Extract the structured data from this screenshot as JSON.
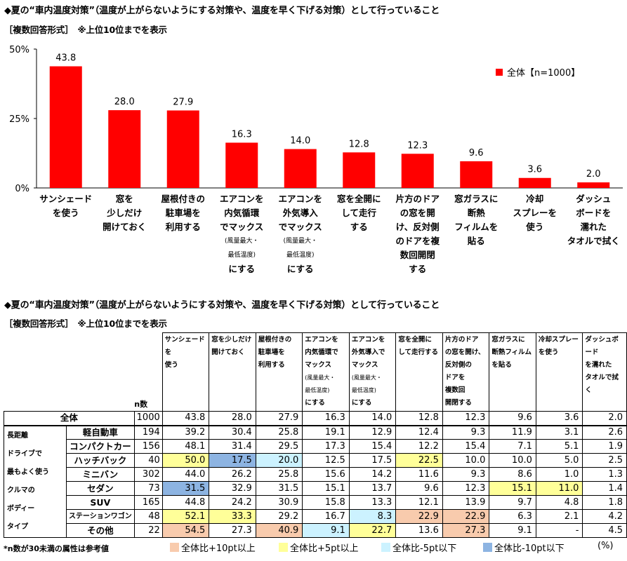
{
  "heading1": "◆夏の“車内温度対策”（温度が上がらないようにする対策や、温度を早く下げる対策）として行っていること",
  "subheading1": "［複数回答形式］　※上位10位までを表示",
  "heading2": "◆夏の“車内温度対策”（温度が上がらないようにする対策や、温度を早く下げる対策）として行っていること",
  "subheading2": "［複数回答形式］　※上位10位までを表示",
  "colors": {
    "bar": "#ff0000",
    "plus10": "#f8cbad",
    "plus5": "#ffff99",
    "minus5": "#ccf2ff",
    "minus10": "#8db4e2"
  },
  "chart_data": {
    "type": "bar",
    "categories": [
      [
        "サンシェード",
        "を使う"
      ],
      [
        "窓を",
        "少しだけ",
        "開けておく"
      ],
      [
        "屋根付きの",
        "駐車場を",
        "利用する"
      ],
      [
        "エアコンを",
        "内気循環",
        "でマックス",
        "(風量最大・",
        "最低温度)",
        "にする"
      ],
      [
        "エアコンを",
        "外気導入",
        "でマックス",
        "(風量最大・",
        "最低温度)",
        "にする"
      ],
      [
        "窓を全開に",
        "して走行",
        "する"
      ],
      [
        "片方のドア",
        "の窓を開",
        "け、反対側",
        "のドアを複",
        "数回開閉",
        "する"
      ],
      [
        "窓ガラスに",
        "断熱",
        "フィルムを",
        "貼る"
      ],
      [
        "冷却",
        "スプレーを",
        "使う"
      ],
      [
        "ダッシュ",
        "ボードを",
        "濡れた",
        "タオルで拭く"
      ]
    ],
    "series": [
      {
        "name": "全体【n=1000】",
        "values": [
          43.8,
          28.0,
          27.9,
          16.3,
          14.0,
          12.8,
          12.3,
          9.6,
          3.6,
          2.0
        ]
      }
    ],
    "yticks": [
      "0%",
      "25%",
      "50%"
    ],
    "ylim": [
      0,
      50
    ],
    "legend": "top-right"
  },
  "table": {
    "headers": [
      [
        "サンシェードを",
        "使う"
      ],
      [
        "窓を少しだけ",
        "開けておく"
      ],
      [
        "屋根付きの",
        "駐車場を",
        "利用する"
      ],
      [
        "エアコンを",
        "内気循環で",
        "マックス",
        "(風量最大・",
        "最低温度)",
        "にする"
      ],
      [
        "エアコンを",
        "外気導入で",
        "マックス",
        "(風量最大・",
        "最低温度)",
        "にする"
      ],
      [
        "窓を全開に",
        "して走行する"
      ],
      [
        "片方のドア",
        "の窓を開け、",
        "反対側の",
        "ドアを",
        "複数回",
        "開閉する"
      ],
      [
        "窓ガラスに",
        "断熱フィルム",
        "を貼る"
      ],
      [
        "冷却スプレー",
        "を使う"
      ],
      [
        "ダッシュボード",
        "を濡れた",
        "タオルで拭く"
      ]
    ],
    "n_label": "n数",
    "group_label": [
      "長距離",
      "ドライブで",
      "最もよく使う",
      "クルマの",
      "ボディー",
      "タイプ"
    ],
    "total": {
      "label": "全体",
      "n": "1000",
      "values": [
        "43.8",
        "28.0",
        "27.9",
        "16.3",
        "14.0",
        "12.8",
        "12.3",
        "9.6",
        "3.6",
        "2.0"
      ]
    },
    "rows": [
      {
        "label": "軽自動車",
        "n": "194",
        "values": [
          "39.2",
          "30.4",
          "25.8",
          "19.1",
          "12.9",
          "12.4",
          "9.3",
          "11.9",
          "3.1",
          "2.6"
        ],
        "marks": [
          "",
          "",
          "",
          "",
          "",
          "",
          "",
          "",
          "",
          ""
        ]
      },
      {
        "label": "コンパクトカー",
        "n": "156",
        "values": [
          "48.1",
          "31.4",
          "29.5",
          "17.3",
          "15.4",
          "12.2",
          "15.4",
          "7.1",
          "5.1",
          "1.9"
        ],
        "marks": [
          "",
          "",
          "",
          "",
          "",
          "",
          "",
          "",
          "",
          ""
        ]
      },
      {
        "label": "ハッチバック",
        "n": "40",
        "values": [
          "50.0",
          "17.5",
          "20.0",
          "12.5",
          "17.5",
          "22.5",
          "10.0",
          "10.0",
          "5.0",
          "2.5"
        ],
        "marks": [
          "p5",
          "m10",
          "m5",
          "",
          "",
          "p5",
          "",
          "",
          "",
          ""
        ]
      },
      {
        "label": "ミニバン",
        "n": "302",
        "values": [
          "44.0",
          "26.2",
          "25.8",
          "15.6",
          "14.2",
          "11.6",
          "9.3",
          "8.6",
          "1.0",
          "1.3"
        ],
        "marks": [
          "",
          "",
          "",
          "",
          "",
          "",
          "",
          "",
          "",
          ""
        ]
      },
      {
        "label": "セダン",
        "n": "73",
        "values": [
          "31.5",
          "32.9",
          "31.5",
          "15.1",
          "13.7",
          "9.6",
          "12.3",
          "15.1",
          "11.0",
          "1.4"
        ],
        "marks": [
          "m10",
          "",
          "",
          "",
          "",
          "",
          "",
          "p5",
          "p5",
          ""
        ]
      },
      {
        "label": "SUV",
        "n": "165",
        "values": [
          "44.8",
          "24.2",
          "30.9",
          "15.8",
          "13.3",
          "12.1",
          "13.9",
          "9.7",
          "4.8",
          "1.8"
        ],
        "marks": [
          "",
          "",
          "",
          "",
          "",
          "",
          "",
          "",
          "",
          ""
        ]
      },
      {
        "label": "ステーションワゴン",
        "n": "48",
        "values": [
          "52.1",
          "33.3",
          "29.2",
          "16.7",
          "8.3",
          "22.9",
          "22.9",
          "6.3",
          "2.1",
          "4.2"
        ],
        "marks": [
          "p5",
          "p5",
          "",
          "",
          "m5",
          "p10",
          "p10",
          "",
          "",
          ""
        ]
      },
      {
        "label": "その他",
        "n": "22",
        "values": [
          "54.5",
          "27.3",
          "40.9",
          "9.1",
          "22.7",
          "13.6",
          "27.3",
          "9.1",
          "-",
          "4.5"
        ],
        "marks": [
          "p10",
          "",
          "p10",
          "m5",
          "p5",
          "",
          "p10",
          "",
          "",
          ""
        ]
      }
    ]
  },
  "footnote": "*n数が30未満の属性は参考値",
  "table_legend": {
    "p10": "全体比+10pt以上",
    "p5": "全体比+5pt以上",
    "m5": "全体比-5pt以下",
    "m10": "全体比-10pt以下",
    "unit": "(%)"
  }
}
